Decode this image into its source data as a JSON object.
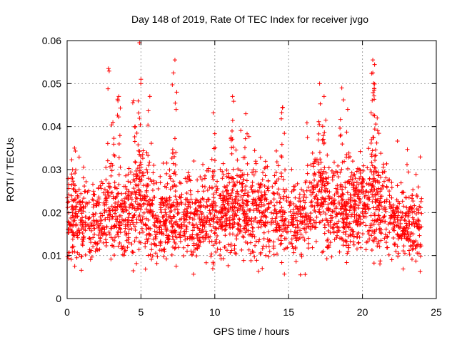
{
  "chart_data": {
    "type": "scatter",
    "title": "Day 148 of 2019, Rate Of TEC Index for receiver jvgo",
    "xlabel": "GPS time / hours",
    "ylabel": "ROTI / TECUs",
    "xlim": [
      0,
      25
    ],
    "ylim": [
      0,
      0.06
    ],
    "xticks": [
      0,
      5,
      10,
      15,
      20,
      25
    ],
    "xtick_labels": [
      "0",
      "5",
      "10",
      "15",
      "20",
      "25"
    ],
    "yticks": [
      0,
      0.01,
      0.02,
      0.03,
      0.04,
      0.05,
      0.06
    ],
    "ytick_labels": [
      "0",
      "0.01",
      "0.02",
      "0.03",
      "0.04",
      "0.05",
      "0.06"
    ],
    "grid": true,
    "marker": "+",
    "color": "#ff0000",
    "series": [
      {
        "name": "ROTI",
        "x_range": [
          0,
          24
        ],
        "profile": [
          {
            "x": 0.0,
            "y": 0.019,
            "spread": 0.006
          },
          {
            "x": 1.0,
            "y": 0.018,
            "spread": 0.006
          },
          {
            "x": 2.0,
            "y": 0.018,
            "spread": 0.006
          },
          {
            "x": 3.0,
            "y": 0.02,
            "spread": 0.007
          },
          {
            "x": 4.0,
            "y": 0.019,
            "spread": 0.006
          },
          {
            "x": 5.0,
            "y": 0.022,
            "spread": 0.008
          },
          {
            "x": 6.0,
            "y": 0.018,
            "spread": 0.006
          },
          {
            "x": 7.0,
            "y": 0.019,
            "spread": 0.006
          },
          {
            "x": 8.0,
            "y": 0.018,
            "spread": 0.006
          },
          {
            "x": 9.0,
            "y": 0.019,
            "spread": 0.006
          },
          {
            "x": 10.0,
            "y": 0.018,
            "spread": 0.006
          },
          {
            "x": 11.0,
            "y": 0.021,
            "spread": 0.007
          },
          {
            "x": 12.0,
            "y": 0.021,
            "spread": 0.007
          },
          {
            "x": 13.0,
            "y": 0.02,
            "spread": 0.007
          },
          {
            "x": 14.0,
            "y": 0.019,
            "spread": 0.006
          },
          {
            "x": 15.0,
            "y": 0.018,
            "spread": 0.006
          },
          {
            "x": 16.0,
            "y": 0.02,
            "spread": 0.007
          },
          {
            "x": 17.0,
            "y": 0.024,
            "spread": 0.008
          },
          {
            "x": 18.0,
            "y": 0.021,
            "spread": 0.007
          },
          {
            "x": 19.0,
            "y": 0.02,
            "spread": 0.006
          },
          {
            "x": 20.0,
            "y": 0.022,
            "spread": 0.007
          },
          {
            "x": 21.0,
            "y": 0.022,
            "spread": 0.007
          },
          {
            "x": 22.0,
            "y": 0.018,
            "spread": 0.006
          },
          {
            "x": 23.0,
            "y": 0.017,
            "spread": 0.006
          },
          {
            "x": 24.0,
            "y": 0.017,
            "spread": 0.006
          }
        ],
        "peaks": [
          {
            "x": 0.5,
            "y": 0.035
          },
          {
            "x": 2.8,
            "y": 0.0535
          },
          {
            "x": 3.1,
            "y": 0.041
          },
          {
            "x": 3.5,
            "y": 0.047
          },
          {
            "x": 4.5,
            "y": 0.046
          },
          {
            "x": 4.9,
            "y": 0.0595
          },
          {
            "x": 5.0,
            "y": 0.051
          },
          {
            "x": 5.6,
            "y": 0.047
          },
          {
            "x": 7.3,
            "y": 0.0555
          },
          {
            "x": 7.2,
            "y": 0.0525
          },
          {
            "x": 9.9,
            "y": 0.0432
          },
          {
            "x": 11.2,
            "y": 0.047
          },
          {
            "x": 12.1,
            "y": 0.043
          },
          {
            "x": 14.6,
            "y": 0.0445
          },
          {
            "x": 17.1,
            "y": 0.05
          },
          {
            "x": 17.4,
            "y": 0.047
          },
          {
            "x": 18.6,
            "y": 0.049
          },
          {
            "x": 19.0,
            "y": 0.044
          },
          {
            "x": 20.7,
            "y": 0.0555
          },
          {
            "x": 20.7,
            "y": 0.0525
          },
          {
            "x": 20.8,
            "y": 0.0488
          },
          {
            "x": 21.0,
            "y": 0.042
          }
        ],
        "min_y": 0.0055
      }
    ]
  }
}
